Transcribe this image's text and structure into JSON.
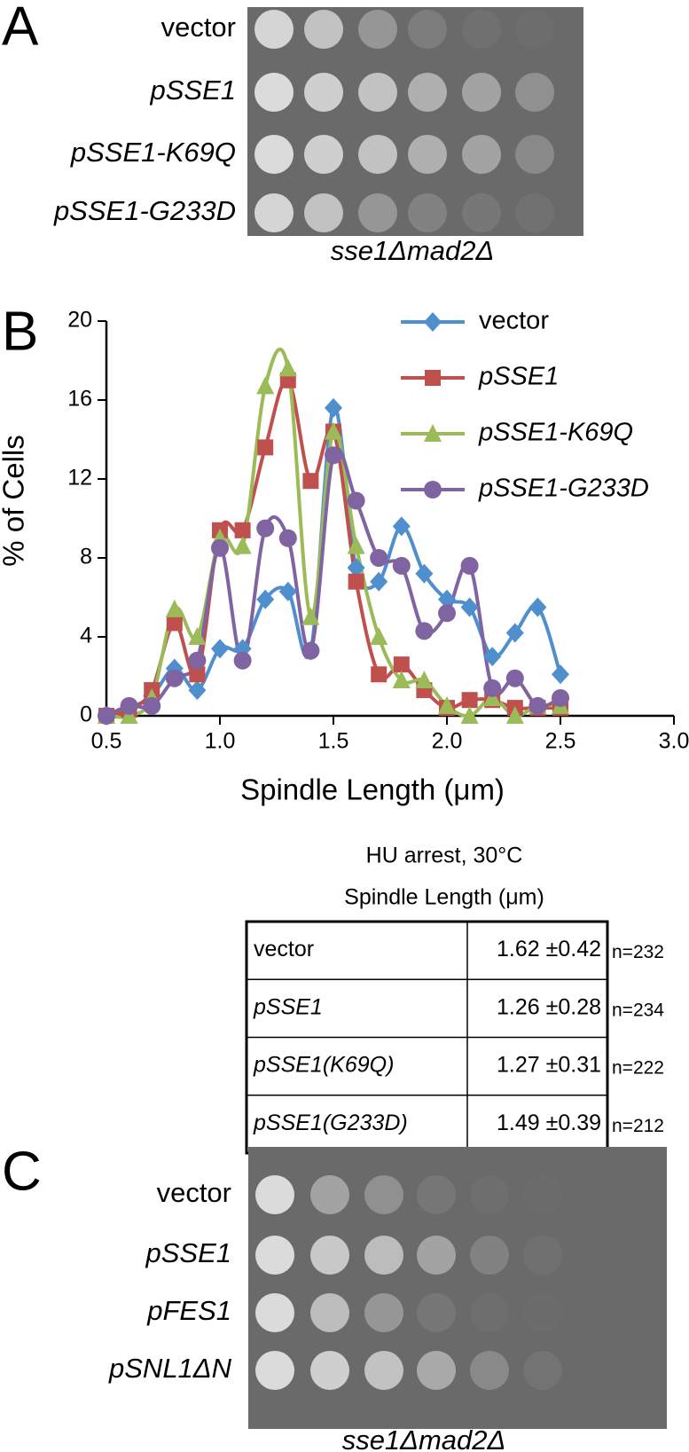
{
  "panel_a": {
    "label": "A",
    "rows": [
      "vector",
      "pSSE1",
      "pSSE1-K69Q",
      "pSSE1-G233D"
    ],
    "caption": "sse1Δmad2Δ"
  },
  "chart_data": {
    "type": "line",
    "panel_label": "B",
    "xlabel": "Spindle Length (μm)",
    "ylabel": "% of Cells",
    "x": [
      0.5,
      0.6,
      0.7,
      0.8,
      0.9,
      1.0,
      1.1,
      1.2,
      1.3,
      1.4,
      1.5,
      1.6,
      1.7,
      1.8,
      1.9,
      2.0,
      2.1,
      2.2,
      2.3,
      2.4,
      2.5
    ],
    "series": [
      {
        "name": "vector",
        "color": "#4f8fce",
        "marker": "diamond",
        "values": [
          0,
          0.4,
          1.0,
          2.4,
          1.3,
          3.4,
          3.4,
          5.9,
          6.3,
          3.3,
          15.6,
          7.5,
          6.8,
          9.6,
          7.2,
          5.9,
          5.5,
          3.0,
          4.2,
          5.5,
          2.1
        ]
      },
      {
        "name": "pSSE1",
        "color": "#c0504d",
        "marker": "square",
        "values": [
          0,
          0.3,
          1.3,
          4.7,
          2.1,
          9.4,
          9.4,
          13.6,
          17.0,
          11.9,
          14.4,
          6.8,
          2.1,
          2.6,
          1.3,
          0.4,
          0.8,
          0.8,
          0.4,
          0.4,
          0.4
        ]
      },
      {
        "name": "pSSE1-K69Q",
        "color": "#9bbb59",
        "marker": "triangle",
        "values": [
          0,
          0,
          0.9,
          5.4,
          4.0,
          9.0,
          8.6,
          16.7,
          17.6,
          5.0,
          14.4,
          8.6,
          4.0,
          1.8,
          1.8,
          0.5,
          0,
          0.9,
          0,
          0.5,
          0.5
        ]
      },
      {
        "name": "pSSE1-G233D",
        "color": "#8064a2",
        "marker": "circle",
        "values": [
          0,
          0.5,
          0.5,
          1.9,
          2.8,
          8.5,
          2.8,
          9.5,
          9.0,
          3.3,
          13.2,
          10.9,
          8.0,
          7.6,
          4.3,
          5.2,
          7.6,
          1.4,
          1.9,
          0.5,
          0.9
        ]
      }
    ],
    "xlim": [
      0.5,
      3.0
    ],
    "xticks": [
      0.5,
      {
        "value": 1,
        "label": "1.0"
      },
      1.5,
      {
        "value": 2,
        "label": "2.0"
      },
      2.5,
      {
        "value": 3,
        "label": "3.0"
      }
    ],
    "ylim": [
      0,
      20
    ],
    "yticks": [
      0,
      4,
      8,
      12,
      16,
      20
    ]
  },
  "table": {
    "title": "HU arrest, 30°C",
    "subtitle": "Spindle Length (μm)",
    "rows": [
      [
        "vector",
        "1.62 ±0.42",
        "n=232"
      ],
      [
        "pSSE1",
        "1.26 ±0.28",
        "n=234"
      ],
      [
        "pSSE1(K69Q)",
        "1.27 ±0.31",
        "n=222"
      ],
      [
        "pSSE1(G233D)",
        "1.49 ±0.39",
        "n=212"
      ]
    ]
  },
  "panel_c": {
    "label": "C",
    "rows": [
      "vector",
      "pSSE1",
      "pFES1",
      "pSNL1ΔN"
    ],
    "caption": "sse1Δmad2Δ"
  }
}
